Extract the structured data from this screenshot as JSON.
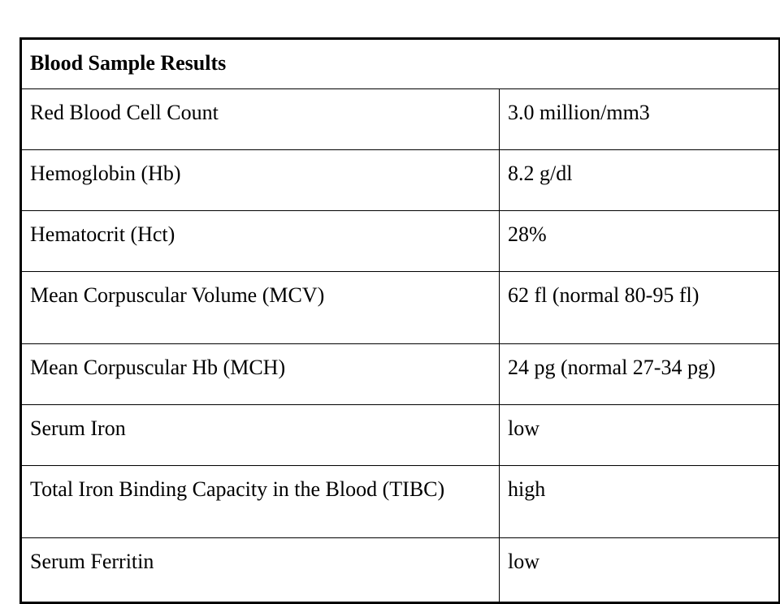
{
  "table": {
    "title": "Blood Sample Results",
    "rows": [
      {
        "label": "Red Blood Cell Count",
        "value": "3.0 million/mm3"
      },
      {
        "label": "Hemoglobin (Hb)",
        "value": "8.2 g/dl"
      },
      {
        "label": "Hematocrit (Hct)",
        "value": "28%"
      },
      {
        "label": "Mean Corpuscular Volume (MCV)",
        "value": "62 fl (normal 80-95 fl)"
      },
      {
        "label": "Mean Corpuscular Hb (MCH)",
        "value": "24 pg (normal 27-34 pg)"
      },
      {
        "label": "Serum Iron",
        "value": "low"
      },
      {
        "label": "Total Iron Binding Capacity in the Blood (TIBC)",
        "value": "high"
      },
      {
        "label": "Serum Ferritin",
        "value": "low"
      }
    ]
  }
}
